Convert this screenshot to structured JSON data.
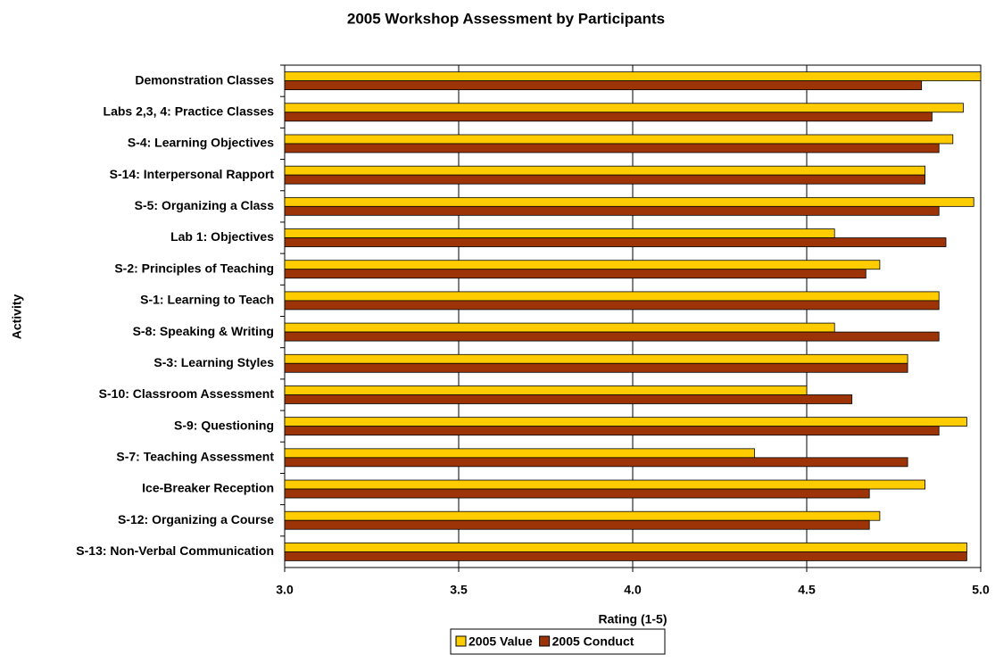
{
  "chart_data": {
    "type": "hbar",
    "title": "2005 Workshop Assessment by Participants",
    "x_label": "Rating (1-5)",
    "y_label": "Activity",
    "categories": [
      "Demonstration Classes",
      "Labs 2,3, 4: Practice Classes",
      "S-4: Learning Objectives",
      "S-14: Interpersonal Rapport",
      "S-5:  Organizing a Class",
      "Lab 1: Objectives",
      "S-2:  Principles of Teaching",
      "S-1: Learning to Teach",
      "S-8: Speaking & Writing",
      "S-3: Learning Styles",
      "S-10: Classroom Assessment",
      "S-9: Questioning",
      "S-7: Teaching Assessment",
      "Ice-Breaker Reception",
      "S-12: Organizing a Course",
      "S-13: Non-Verbal Communication"
    ],
    "series": [
      {
        "name": "2005 Value",
        "color": "#ffcc00",
        "values": [
          5.0,
          4.95,
          4.92,
          4.84,
          4.98,
          4.58,
          4.71,
          4.88,
          4.58,
          4.79,
          4.5,
          4.96,
          4.35,
          4.84,
          4.71,
          4.96
        ]
      },
      {
        "name": "2005 Conduct",
        "color": "#9c3408",
        "values": [
          4.83,
          4.86,
          4.88,
          4.84,
          4.88,
          4.9,
          4.67,
          4.88,
          4.88,
          4.79,
          4.63,
          4.88,
          4.79,
          4.68,
          4.68,
          4.96
        ]
      }
    ],
    "xlim": [
      3,
      5
    ],
    "xticks": [
      {
        "value": 3,
        "label": "3.0"
      },
      {
        "value": 3.5,
        "label": "3.5"
      },
      {
        "value": 4,
        "label": "4.0"
      },
      {
        "value": 4.5,
        "label": "4.5"
      },
      {
        "value": 5,
        "label": "5.0"
      }
    ],
    "grid": true,
    "legend": "bottom"
  }
}
